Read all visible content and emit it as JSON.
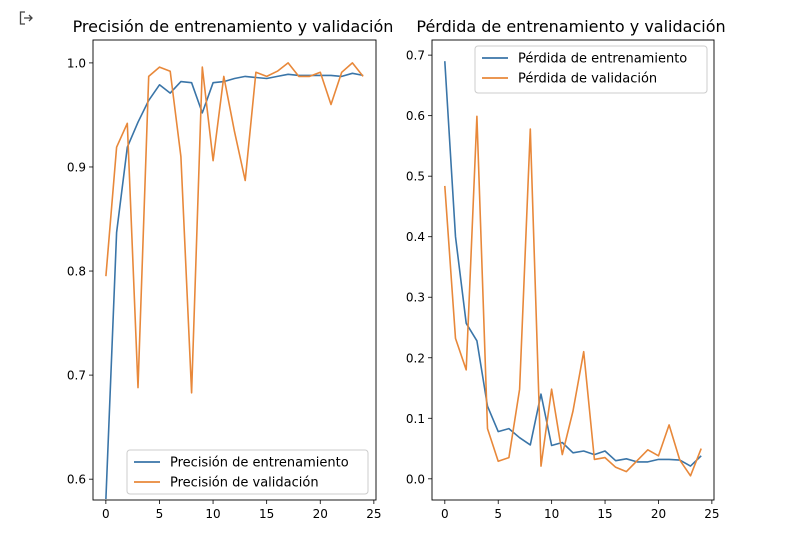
{
  "output_icon": "output-arrow-icon",
  "chart_data": [
    {
      "type": "line",
      "title": "Precisión de entrenamiento y validación",
      "xlabel": "",
      "ylabel": "",
      "xlim": [
        -1.2,
        25.2
      ],
      "ylim": [
        0.58,
        1.022
      ],
      "xticks": [
        0,
        5,
        10,
        15,
        20,
        25
      ],
      "yticks": [
        0.6,
        0.7,
        0.8,
        0.9,
        1.0
      ],
      "ytick_labels": [
        "0.6",
        "0.7",
        "0.8",
        "0.9",
        "1.0"
      ],
      "legend_position": "lower right",
      "x": [
        0,
        1,
        2,
        3,
        4,
        5,
        6,
        7,
        8,
        9,
        10,
        11,
        12,
        13,
        14,
        15,
        16,
        17,
        18,
        19,
        20,
        21,
        22,
        23,
        24
      ],
      "series": [
        {
          "name": "Precisión de entrenamiento",
          "color": "#3a75a8",
          "values": [
            0.581,
            0.837,
            0.919,
            0.943,
            0.964,
            0.979,
            0.971,
            0.982,
            0.981,
            0.952,
            0.981,
            0.982,
            0.985,
            0.987,
            0.986,
            0.985,
            0.987,
            0.989,
            0.988,
            0.988,
            0.988,
            0.988,
            0.987,
            0.99,
            0.988
          ]
        },
        {
          "name": "Precisión de validación",
          "color": "#e8883a",
          "values": [
            0.795,
            0.919,
            0.942,
            0.688,
            0.987,
            0.996,
            0.992,
            0.91,
            0.683,
            0.996,
            0.906,
            0.987,
            0.934,
            0.887,
            0.991,
            0.987,
            0.992,
            1.0,
            0.987,
            0.987,
            0.991,
            0.96,
            0.991,
            1.0,
            0.987
          ]
        }
      ]
    },
    {
      "type": "line",
      "title": "Pérdida de entrenamiento y validación",
      "xlabel": "",
      "ylabel": "",
      "xlim": [
        -1.2,
        25.2
      ],
      "ylim": [
        -0.035,
        0.725
      ],
      "xticks": [
        0,
        5,
        10,
        15,
        20,
        25
      ],
      "yticks": [
        0.0,
        0.1,
        0.2,
        0.3,
        0.4,
        0.5,
        0.6,
        0.7
      ],
      "ytick_labels": [
        "0.0",
        "0.1",
        "0.2",
        "0.3",
        "0.4",
        "0.5",
        "0.6",
        "0.7"
      ],
      "legend_position": "upper right",
      "x": [
        0,
        1,
        2,
        3,
        4,
        5,
        6,
        7,
        8,
        9,
        10,
        11,
        12,
        13,
        14,
        15,
        16,
        17,
        18,
        19,
        20,
        21,
        22,
        23,
        24
      ],
      "series": [
        {
          "name": "Pérdida de entrenamiento",
          "color": "#3a75a8",
          "values": [
            0.69,
            0.4,
            0.257,
            0.228,
            0.12,
            0.078,
            0.083,
            0.068,
            0.056,
            0.14,
            0.055,
            0.06,
            0.043,
            0.046,
            0.04,
            0.046,
            0.03,
            0.033,
            0.028,
            0.028,
            0.032,
            0.032,
            0.031,
            0.021,
            0.038
          ]
        },
        {
          "name": "Pérdida de validación",
          "color": "#e8883a",
          "values": [
            0.484,
            0.232,
            0.18,
            0.599,
            0.083,
            0.029,
            0.035,
            0.148,
            0.578,
            0.021,
            0.148,
            0.04,
            0.112,
            0.21,
            0.032,
            0.035,
            0.019,
            0.012,
            0.03,
            0.048,
            0.038,
            0.089,
            0.031,
            0.005,
            0.05
          ]
        }
      ]
    }
  ]
}
